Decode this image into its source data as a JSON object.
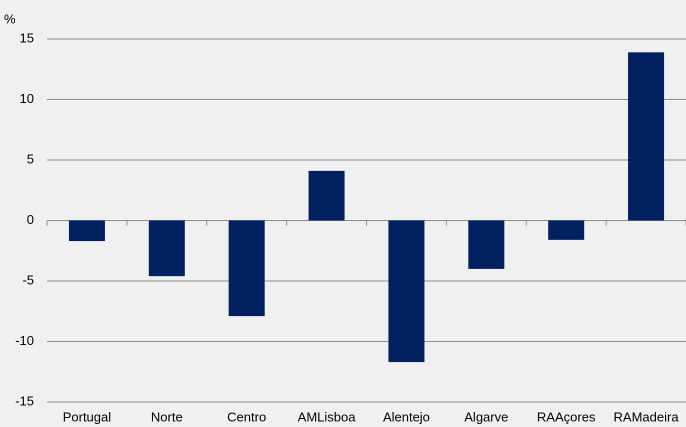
{
  "chart_data": {
    "type": "bar",
    "y_label": "%",
    "categories": [
      "Portugal",
      "Norte",
      "Centro",
      "AMLisboa",
      "Alentejo",
      "Algarve",
      "RAAçores",
      "RAMadeira"
    ],
    "values": [
      -1.7,
      -4.6,
      -7.9,
      4.1,
      -11.7,
      -4.0,
      -1.6,
      13.9
    ],
    "color": "#002060",
    "ylim": [
      -15,
      15
    ],
    "yticks": [
      -15,
      -10,
      -5,
      0,
      5,
      10,
      15
    ],
    "grid": true
  }
}
